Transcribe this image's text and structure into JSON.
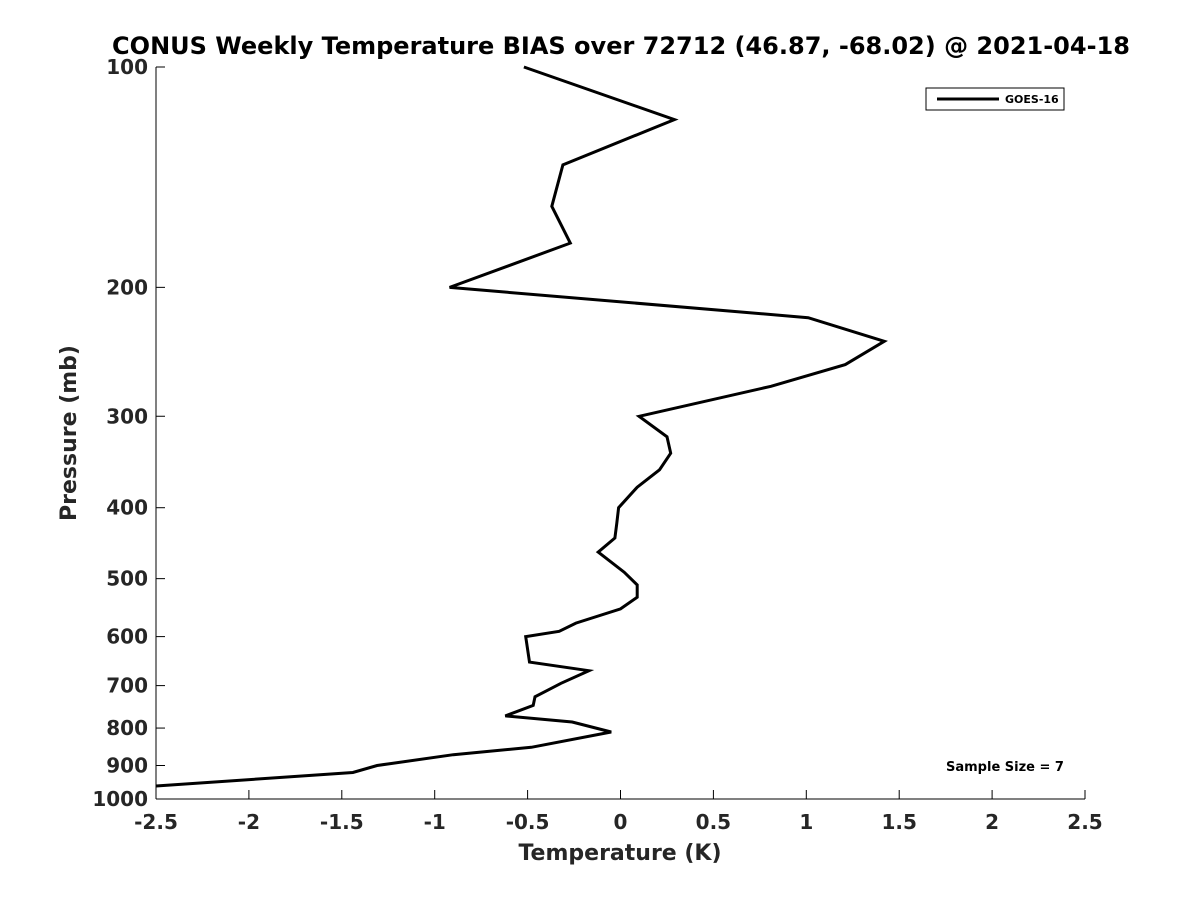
{
  "chart_data": {
    "type": "line",
    "title": "CONUS Weekly Temperature BIAS over 72712 (46.87, -68.02) @ 2021-04-18",
    "xlabel": "Temperature (K)",
    "ylabel": "Pressure (mb)",
    "xlim": [
      -2.5,
      2.5
    ],
    "ylim": [
      1000,
      100
    ],
    "y_scale": "log",
    "y_reversed": true,
    "x_ticks": [
      -2.5,
      -2,
      -1.5,
      -1,
      -0.5,
      0,
      0.5,
      1,
      1.5,
      2,
      2.5
    ],
    "x_tick_labels": [
      "-2.5",
      "-2",
      "-1.5",
      "-1",
      "-0.5",
      "0",
      "0.5",
      "1",
      "1.5",
      "2",
      "2.5"
    ],
    "y_ticks": [
      100,
      200,
      300,
      400,
      500,
      600,
      700,
      800,
      900,
      1000
    ],
    "y_tick_labels": [
      "100",
      "200",
      "300",
      "400",
      "500",
      "600",
      "700",
      "800",
      "900",
      "1000"
    ],
    "grid": false,
    "legend_position": "top-right",
    "series": [
      {
        "name": "GOES-16",
        "color": "#000000",
        "points": [
          {
            "x": -0.52,
            "y": 100
          },
          {
            "x": 0.29,
            "y": 118
          },
          {
            "x": -0.31,
            "y": 136
          },
          {
            "x": -0.37,
            "y": 155
          },
          {
            "x": -0.27,
            "y": 174
          },
          {
            "x": -0.92,
            "y": 200
          },
          {
            "x": 1.01,
            "y": 220
          },
          {
            "x": 1.42,
            "y": 237
          },
          {
            "x": 1.21,
            "y": 255
          },
          {
            "x": 0.81,
            "y": 273
          },
          {
            "x": 0.1,
            "y": 300
          },
          {
            "x": 0.25,
            "y": 320
          },
          {
            "x": 0.27,
            "y": 337
          },
          {
            "x": 0.21,
            "y": 355
          },
          {
            "x": 0.09,
            "y": 375
          },
          {
            "x": -0.01,
            "y": 400
          },
          {
            "x": -0.02,
            "y": 420
          },
          {
            "x": -0.03,
            "y": 440
          },
          {
            "x": -0.12,
            "y": 460
          },
          {
            "x": 0.02,
            "y": 490
          },
          {
            "x": 0.09,
            "y": 510
          },
          {
            "x": 0.09,
            "y": 530
          },
          {
            "x": 0.0,
            "y": 550
          },
          {
            "x": -0.24,
            "y": 575
          },
          {
            "x": -0.33,
            "y": 590
          },
          {
            "x": -0.51,
            "y": 600
          },
          {
            "x": -0.49,
            "y": 650
          },
          {
            "x": -0.17,
            "y": 668
          },
          {
            "x": -0.32,
            "y": 695
          },
          {
            "x": -0.39,
            "y": 710
          },
          {
            "x": -0.46,
            "y": 725
          },
          {
            "x": -0.47,
            "y": 745
          },
          {
            "x": -0.62,
            "y": 770
          },
          {
            "x": -0.26,
            "y": 785
          },
          {
            "x": -0.05,
            "y": 810
          },
          {
            "x": -0.48,
            "y": 850
          },
          {
            "x": -0.9,
            "y": 870
          },
          {
            "x": -1.31,
            "y": 900
          },
          {
            "x": -1.44,
            "y": 920
          },
          {
            "x": -2.5,
            "y": 960
          }
        ]
      }
    ],
    "annotations": [
      {
        "text": "Sample Size = 7",
        "position": "bottom-right"
      }
    ]
  }
}
